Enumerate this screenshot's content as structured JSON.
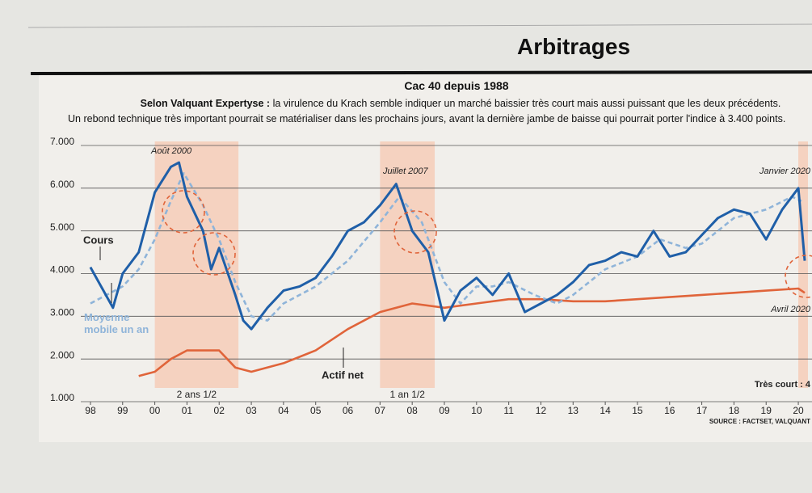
{
  "header": {
    "section": "Arbitrages"
  },
  "chart_data": {
    "type": "line",
    "title": "Cac 40 depuis 1988",
    "subtitle_lead": "Selon Valquant Expertyse :",
    "subtitle": "la virulence du Krach semble indiquer un marché baissier très court mais aussi puissant que les deux précédents.",
    "subtitle_2": "Un rebond technique très important pourrait se matérialiser dans les prochains jours, avant la dernière jambe de baisse qui pourrait porter l'indice à 3.400 points.",
    "source": "SOURCE : FACTSET, VALQUANT",
    "xlim": [
      1997.7,
      2020.3
    ],
    "xticks": [
      {
        "value": 1998,
        "label": "98"
      },
      {
        "value": 1999,
        "label": "99"
      },
      {
        "value": 2000,
        "label": "00"
      },
      {
        "value": 2001,
        "label": "01"
      },
      {
        "value": 2002,
        "label": "02"
      },
      {
        "value": 2003,
        "label": "03"
      },
      {
        "value": 2004,
        "label": "04"
      },
      {
        "value": 2005,
        "label": "05"
      },
      {
        "value": 2006,
        "label": "06"
      },
      {
        "value": 2007,
        "label": "07"
      },
      {
        "value": 2008,
        "label": "08"
      },
      {
        "value": 2009,
        "label": "09"
      },
      {
        "value": 2010,
        "label": "10"
      },
      {
        "value": 2011,
        "label": "11"
      },
      {
        "value": 2012,
        "label": "12"
      },
      {
        "value": 2013,
        "label": "13"
      },
      {
        "value": 2014,
        "label": "14"
      },
      {
        "value": 2015,
        "label": "15"
      },
      {
        "value": 2016,
        "label": "16"
      },
      {
        "value": 2017,
        "label": "17"
      },
      {
        "value": 2018,
        "label": "18"
      },
      {
        "value": 2019,
        "label": "19"
      },
      {
        "value": 2020,
        "label": "20"
      }
    ],
    "ylim": [
      1000,
      7000
    ],
    "yticks": [
      {
        "value": 1000,
        "label": "1.000"
      },
      {
        "value": 2000,
        "label": "2.000"
      },
      {
        "value": 3000,
        "label": "3.000"
      },
      {
        "value": 4000,
        "label": "4.000"
      },
      {
        "value": 5000,
        "label": "5.000"
      },
      {
        "value": 6000,
        "label": "6.000"
      },
      {
        "value": 7000,
        "label": "7.000"
      }
    ],
    "grid": true,
    "shaded_periods": [
      {
        "start": 2000.0,
        "end": 2002.6,
        "label": "2 ans 1/2"
      },
      {
        "start": 2007.0,
        "end": 2008.7,
        "label": "1 an 1/2"
      },
      {
        "start": 2020.0,
        "end": 2020.3
      }
    ],
    "series": [
      {
        "name": "Cours",
        "color": "#1f5fa8",
        "x": [
          1998.0,
          1998.7,
          1999.0,
          1999.5,
          2000.0,
          2000.5,
          2000.75,
          2001.0,
          2001.5,
          2001.75,
          2002.0,
          2002.5,
          2002.75,
          2003.0,
          2003.5,
          2004.0,
          2004.5,
          2005.0,
          2005.5,
          2006.0,
          2006.5,
          2007.0,
          2007.5,
          2008.0,
          2008.5,
          2009.0,
          2009.5,
          2010.0,
          2010.5,
          2011.0,
          2011.5,
          2012.0,
          2012.5,
          2013.0,
          2013.5,
          2014.0,
          2014.5,
          2015.0,
          2015.5,
          2016.0,
          2016.5,
          2017.0,
          2017.5,
          2018.0,
          2018.5,
          2019.0,
          2019.5,
          2020.0,
          2020.2
        ],
        "values": [
          4150,
          3200,
          4000,
          4500,
          5900,
          6500,
          6600,
          5800,
          5000,
          4100,
          4600,
          3500,
          2900,
          2700,
          3200,
          3600,
          3700,
          3900,
          4400,
          5000,
          5200,
          5600,
          6100,
          5000,
          4500,
          2900,
          3600,
          3900,
          3500,
          4000,
          3100,
          3300,
          3500,
          3800,
          4200,
          4300,
          4500,
          4400,
          5000,
          4400,
          4500,
          4900,
          5300,
          5500,
          5400,
          4800,
          5500,
          6000,
          4300
        ]
      },
      {
        "name": "Moyenne mobile un an",
        "color": "#8fb4d9",
        "dashed": true,
        "x": [
          1998.0,
          1999.0,
          1999.5,
          2000.0,
          2000.5,
          2000.9,
          2001.5,
          2002.0,
          2002.5,
          2003.0,
          2003.5,
          2004.0,
          2005.0,
          2006.0,
          2007.0,
          2007.6,
          2008.3,
          2009.0,
          2009.5,
          2010.0,
          2010.5,
          2011.0,
          2011.8,
          2012.5,
          2013.0,
          2014.0,
          2015.0,
          2015.7,
          2016.5,
          2017.0,
          2018.0,
          2019.0,
          2019.8,
          2020.1
        ],
        "values": [
          3300,
          3700,
          4100,
          4800,
          5700,
          6350,
          5600,
          4800,
          3800,
          3000,
          2900,
          3300,
          3700,
          4300,
          5200,
          5800,
          5200,
          3800,
          3300,
          3700,
          3700,
          3800,
          3500,
          3300,
          3500,
          4100,
          4400,
          4800,
          4600,
          4700,
          5300,
          5500,
          5800,
          5700
        ]
      },
      {
        "name": "Actif net",
        "color": "#e0643a",
        "x": [
          1999.5,
          2000.0,
          2000.5,
          2001.0,
          2002.0,
          2002.5,
          2003.0,
          2004.0,
          2005.0,
          2006.0,
          2007.0,
          2008.0,
          2009.0,
          2010.0,
          2011.0,
          2012.0,
          2013.0,
          2014.0,
          2015.0,
          2016.0,
          2017.0,
          2018.0,
          2019.0,
          2020.0,
          2020.2
        ],
        "values": [
          1600,
          1700,
          2000,
          2200,
          2200,
          1800,
          1700,
          1900,
          2200,
          2700,
          3100,
          3300,
          3200,
          3300,
          3400,
          3400,
          3350,
          3350,
          3400,
          3450,
          3500,
          3550,
          3600,
          3650,
          3550
        ]
      }
    ],
    "annotations": [
      "Août 2000",
      "Juillet 2007",
      "Janvier 2020",
      "Avril 2020",
      "Très court : 4"
    ]
  }
}
